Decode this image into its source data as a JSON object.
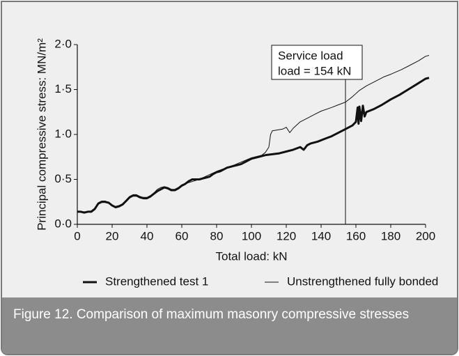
{
  "chart_data": {
    "type": "line",
    "xlabel": "Total load: kN",
    "ylabel": "Principal compressive stress: MN/m²",
    "xlim": [
      0,
      200
    ],
    "ylim": [
      0,
      2
    ],
    "xticks": [
      0,
      20,
      40,
      60,
      80,
      100,
      120,
      140,
      160,
      180,
      200
    ],
    "yticks": [
      {
        "value": 0,
        "label": "0·0"
      },
      {
        "value": 0.5,
        "label": "0·5"
      },
      {
        "value": 1,
        "label": "1·0"
      },
      {
        "value": 1.5,
        "label": "1·5"
      },
      {
        "value": 2,
        "label": "2·0"
      }
    ],
    "legend": "bottom",
    "annotation": {
      "lines": [
        "Service load",
        "load = 154 kN"
      ],
      "x": 154
    },
    "series": [
      {
        "name": "Strengthened test 1",
        "color": "#111111",
        "width": 3,
        "x": [
          0,
          2,
          4,
          6,
          8,
          10,
          12,
          14,
          16,
          18,
          20,
          22,
          24,
          26,
          28,
          30,
          32,
          34,
          36,
          38,
          40,
          42,
          44,
          46,
          48,
          50,
          52,
          54,
          56,
          58,
          60,
          62,
          64,
          66,
          68,
          70,
          72,
          74,
          76,
          78,
          80,
          82,
          84,
          86,
          88,
          90,
          92,
          94,
          96,
          98,
          100,
          104,
          108,
          112,
          116,
          120,
          124,
          128,
          130,
          132,
          134,
          138,
          142,
          146,
          150,
          154,
          158,
          160,
          161,
          161.5,
          162,
          163,
          164,
          165,
          166,
          170,
          175,
          180,
          185,
          190,
          195,
          200,
          202
        ],
        "values": [
          0.14,
          0.14,
          0.13,
          0.14,
          0.14,
          0.17,
          0.23,
          0.25,
          0.25,
          0.24,
          0.21,
          0.19,
          0.2,
          0.22,
          0.26,
          0.3,
          0.32,
          0.32,
          0.3,
          0.29,
          0.29,
          0.31,
          0.34,
          0.37,
          0.39,
          0.41,
          0.4,
          0.38,
          0.38,
          0.4,
          0.43,
          0.45,
          0.48,
          0.5,
          0.5,
          0.5,
          0.51,
          0.52,
          0.53,
          0.56,
          0.58,
          0.59,
          0.61,
          0.63,
          0.64,
          0.65,
          0.66,
          0.67,
          0.69,
          0.71,
          0.73,
          0.75,
          0.77,
          0.78,
          0.79,
          0.81,
          0.83,
          0.86,
          0.83,
          0.88,
          0.9,
          0.92,
          0.95,
          0.98,
          1.02,
          1.06,
          1.1,
          1.14,
          1.3,
          1.12,
          1.31,
          1.15,
          1.32,
          1.2,
          1.25,
          1.28,
          1.33,
          1.39,
          1.44,
          1.5,
          1.56,
          1.62,
          1.63
        ]
      },
      {
        "name": "Unstrengthened fully bonded",
        "color": "#111111",
        "width": 1,
        "x": [
          0,
          2,
          4,
          6,
          8,
          10,
          12,
          14,
          16,
          18,
          20,
          22,
          24,
          26,
          28,
          30,
          32,
          34,
          36,
          38,
          40,
          42,
          44,
          46,
          48,
          50,
          52,
          54,
          56,
          58,
          60,
          70,
          80,
          90,
          100,
          106,
          108,
          110,
          111,
          112,
          118,
          120,
          122,
          124,
          128,
          132,
          136,
          140,
          146,
          150,
          154,
          158,
          162,
          166,
          170,
          176,
          180,
          186,
          190,
          196,
          200,
          202
        ],
        "values": [
          0.15,
          0.14,
          0.14,
          0.14,
          0.15,
          0.18,
          0.24,
          0.26,
          0.26,
          0.24,
          0.21,
          0.2,
          0.21,
          0.23,
          0.27,
          0.31,
          0.33,
          0.33,
          0.31,
          0.3,
          0.3,
          0.32,
          0.35,
          0.39,
          0.41,
          0.42,
          0.41,
          0.39,
          0.39,
          0.41,
          0.44,
          0.5,
          0.59,
          0.66,
          0.74,
          0.77,
          0.8,
          0.86,
          1.0,
          1.04,
          1.06,
          1.08,
          1.02,
          1.07,
          1.14,
          1.18,
          1.22,
          1.26,
          1.3,
          1.33,
          1.36,
          1.42,
          1.49,
          1.54,
          1.58,
          1.64,
          1.67,
          1.72,
          1.76,
          1.82,
          1.87,
          1.88
        ]
      }
    ]
  },
  "caption": "Figure 12. Comparison of maximum masonry compressive stresses"
}
